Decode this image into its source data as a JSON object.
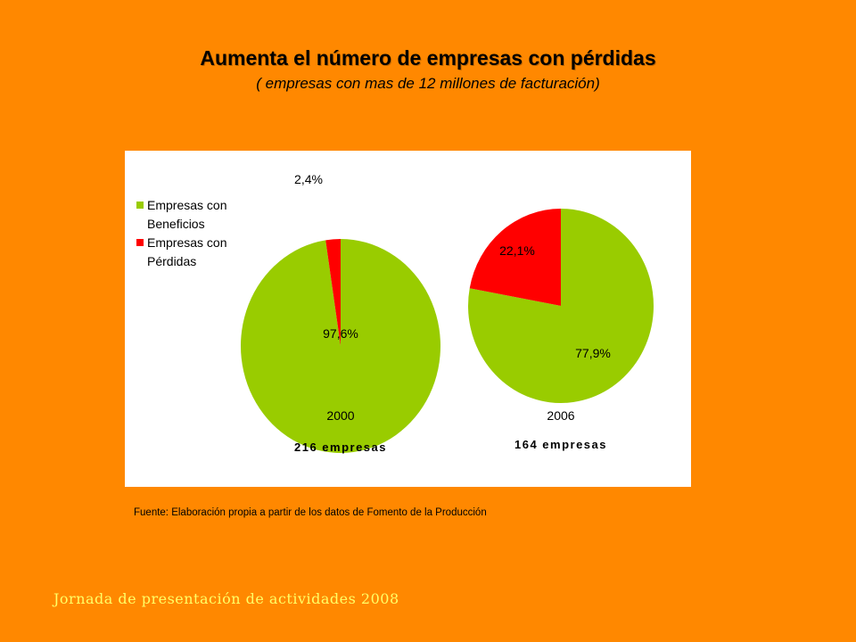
{
  "title": "Aumenta el número de empresas con pérdidas",
  "subtitle": "( empresas con mas de 12 millones de facturación)",
  "source": "Fuente: Elaboración propia a partir de los datos de Fomento de la Producción",
  "footer": "Jornada de presentación de actividades 2008",
  "colors": {
    "background": "#FF8800",
    "beneficios": "#99CC00",
    "perdidas": "#FF0000",
    "footer_text": "#FFFF66"
  },
  "chart_data": [
    {
      "type": "pie",
      "categories": [
        "Empresas con Beneficios",
        "Empresas con Pérdidas"
      ],
      "values": [
        97.6,
        2.4
      ],
      "data_labels": [
        "97,6%",
        "2,4%"
      ],
      "xlabel": "2000",
      "total_label": "216 empresas",
      "legend": [
        {
          "lines": [
            "Empresas con",
            "Beneficios"
          ],
          "color": "#99CC00"
        },
        {
          "lines": [
            "Empresas con",
            "Pérdidas"
          ],
          "color": "#FF0000"
        }
      ],
      "legend_position": "left"
    },
    {
      "type": "pie",
      "categories": [
        "Empresas con Beneficios",
        "Empresas con Pérdidas"
      ],
      "values": [
        77.9,
        22.1
      ],
      "data_labels": [
        "77,9%",
        "22,1%"
      ],
      "xlabel": "2006",
      "total_label": "164 empresas"
    }
  ]
}
